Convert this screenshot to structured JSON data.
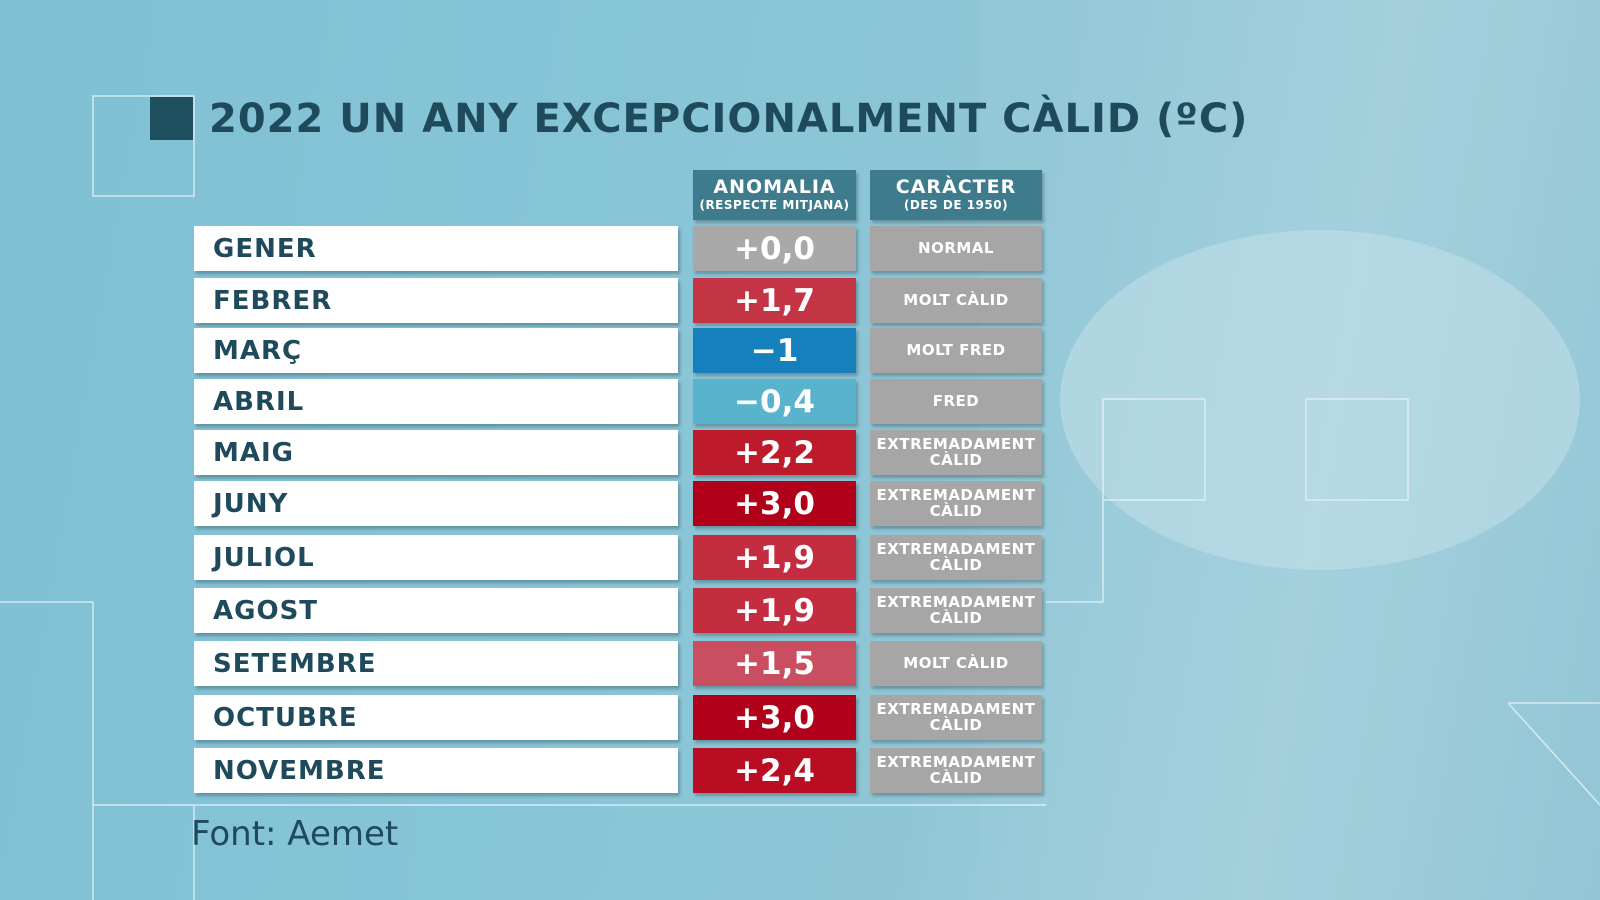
{
  "header": {
    "title": "2022 UN ANY EXCEPCIONALMENT CÀLID (ºC)"
  },
  "table": {
    "columns": [
      {
        "title": "ANOMALIA",
        "subtitle": "(RESPECTE MITJANA)"
      },
      {
        "title": "CARÀCTER",
        "subtitle": "(DES DE 1950)"
      }
    ],
    "rows": [
      {
        "month": "GENER",
        "anomaly": "+0,0",
        "character": "NORMAL",
        "color": "#a9a9a9"
      },
      {
        "month": "FEBRER",
        "anomaly": "+1,7",
        "character": "MOLT CÀLID",
        "color": "#c33445"
      },
      {
        "month": "MARÇ",
        "anomaly": "−1",
        "character": "MOLT FRED",
        "color": "#1680bd"
      },
      {
        "month": "ABRIL",
        "anomaly": "−0,4",
        "character": "FRED",
        "color": "#5ab3cc"
      },
      {
        "month": "MAIG",
        "anomaly": "+2,2",
        "character": "EXTREMADAMENT CÀLID",
        "color": "#bd1a2c"
      },
      {
        "month": "JUNY",
        "anomaly": "+3,0",
        "character": "EXTREMADAMENT CÀLID",
        "color": "#b0001a"
      },
      {
        "month": "JULIOL",
        "anomaly": "+1,9",
        "character": "EXTREMADAMENT CÀLID",
        "color": "#c42c3f"
      },
      {
        "month": "AGOST",
        "anomaly": "+1,9",
        "character": "EXTREMADAMENT CÀLID",
        "color": "#c42c3f"
      },
      {
        "month": "SETEMBRE",
        "anomaly": "+1,5",
        "character": "MOLT CÀLID",
        "color": "#c94e60"
      },
      {
        "month": "OCTUBRE",
        "anomaly": "+3,0",
        "character": "EXTREMADAMENT CÀLID",
        "color": "#b0001a"
      },
      {
        "month": "NOVEMBRE",
        "anomaly": "+2,4",
        "character": "EXTREMADAMENT CÀLID",
        "color": "#b80d22"
      }
    ]
  },
  "footer": {
    "source": "Font: Aemet"
  }
}
